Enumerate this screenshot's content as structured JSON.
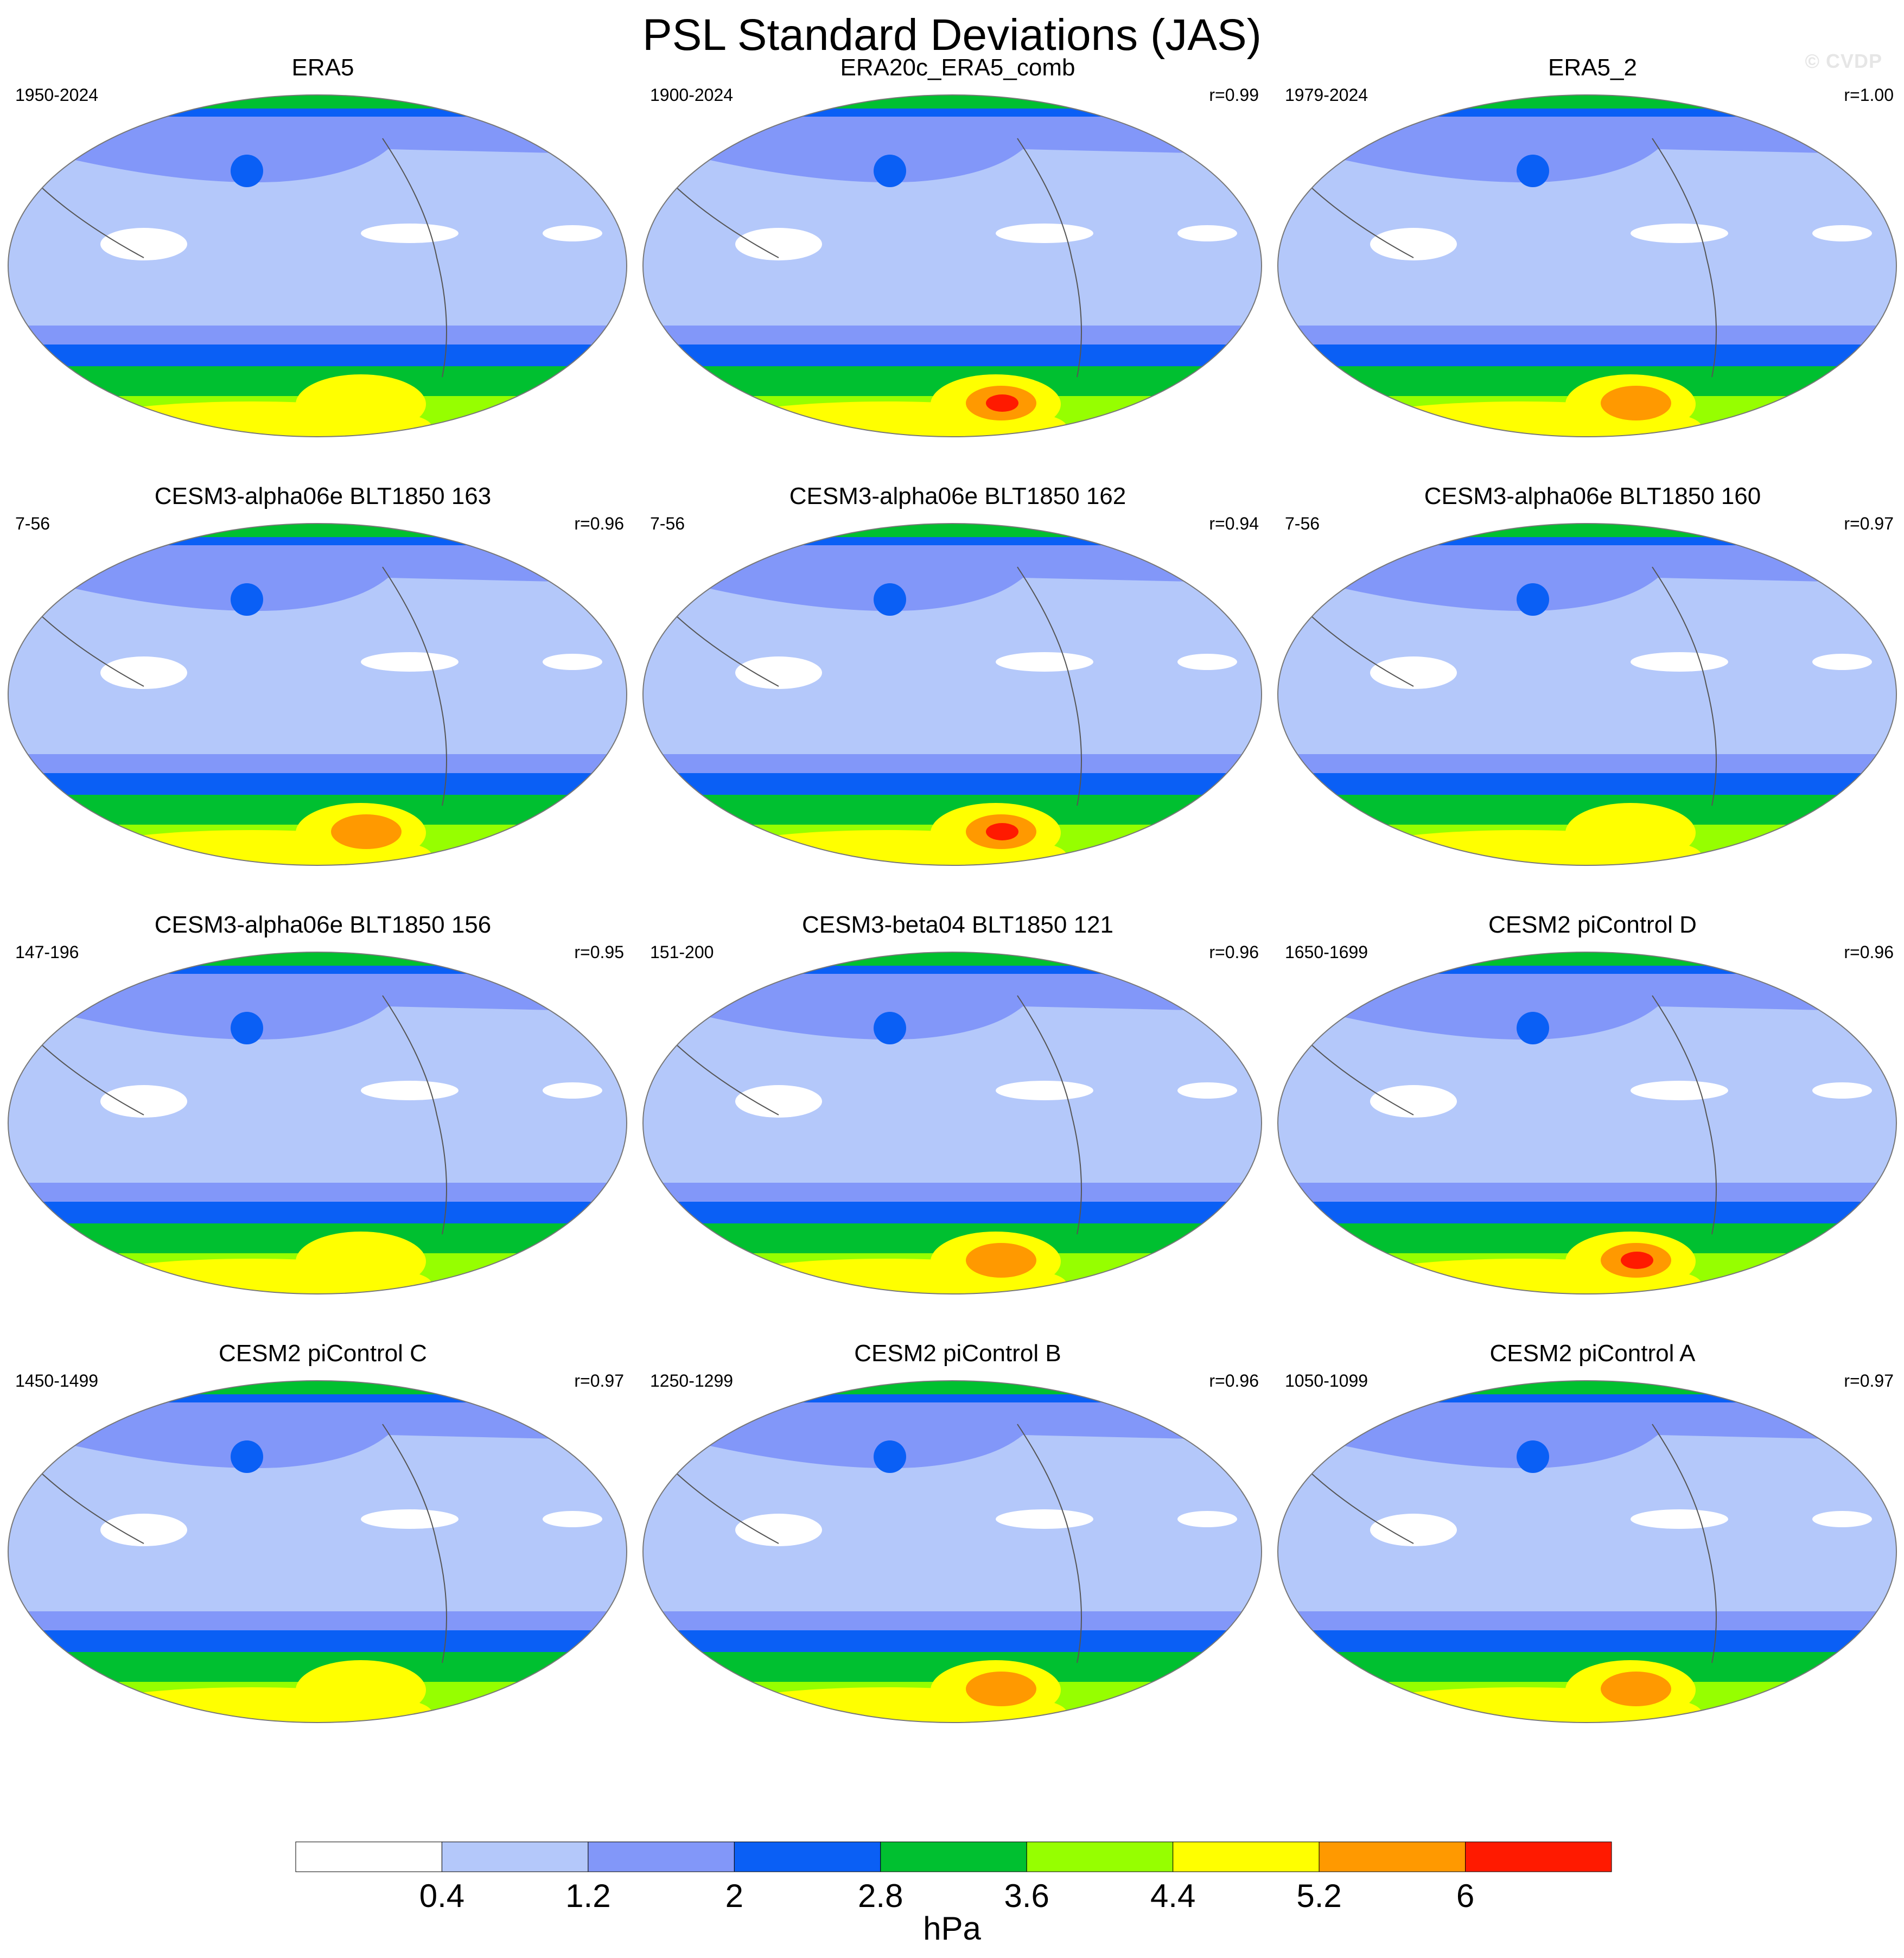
{
  "title": "PSL Standard Deviations (JAS)",
  "watermark": "© CVDP",
  "units": "hPa",
  "colorbar": {
    "colors": [
      "#ffffff",
      "#b4c8fa",
      "#8297f9",
      "#0a5ff5",
      "#00c030",
      "#96ff00",
      "#ffff00",
      "#ff9900",
      "#ff1a00"
    ],
    "labels": [
      "0.4",
      "1.2",
      "2",
      "2.8",
      "3.6",
      "4.4",
      "5.2",
      "6"
    ]
  },
  "palette": {
    "white": "#ffffff",
    "lightblue": "#b4c8fa",
    "medblue": "#8297f9",
    "blue": "#0a5ff5",
    "green": "#00c030",
    "lime": "#96ff00",
    "yellow": "#ffff00",
    "orange": "#ff9900",
    "red": "#ff1a00",
    "coast": "#555555"
  },
  "panels": [
    {
      "title": "ERA5",
      "years": "1950-2024",
      "r": "",
      "south_max": "yellow"
    },
    {
      "title": "ERA20c_ERA5_comb",
      "years": "1900-2024",
      "r": "r=0.99",
      "south_max": "red"
    },
    {
      "title": "ERA5_2",
      "years": "1979-2024",
      "r": "r=1.00",
      "south_max": "orange"
    },
    {
      "title": "CESM3-alpha06e BLT1850 163",
      "years": "7-56",
      "r": "r=0.96",
      "south_max": "orange"
    },
    {
      "title": "CESM3-alpha06e BLT1850 162",
      "years": "7-56",
      "r": "r=0.94",
      "south_max": "red"
    },
    {
      "title": "CESM3-alpha06e BLT1850 160",
      "years": "7-56",
      "r": "r=0.97",
      "south_max": "yellow"
    },
    {
      "title": "CESM3-alpha06e BLT1850 156",
      "years": "147-196",
      "r": "r=0.95",
      "south_max": "yellow"
    },
    {
      "title": "CESM3-beta04 BLT1850 121",
      "years": "151-200",
      "r": "r=0.96",
      "south_max": "orange"
    },
    {
      "title": "CESM2 piControl D",
      "years": "1650-1699",
      "r": "r=0.96",
      "south_max": "red"
    },
    {
      "title": "CESM2 piControl C",
      "years": "1450-1499",
      "r": "r=0.97",
      "south_max": "yellow"
    },
    {
      "title": "CESM2 piControl B",
      "years": "1250-1299",
      "r": "r=0.96",
      "south_max": "orange"
    },
    {
      "title": "CESM2 piControl A",
      "years": "1050-1099",
      "r": "r=0.97",
      "south_max": "orange"
    }
  ]
}
